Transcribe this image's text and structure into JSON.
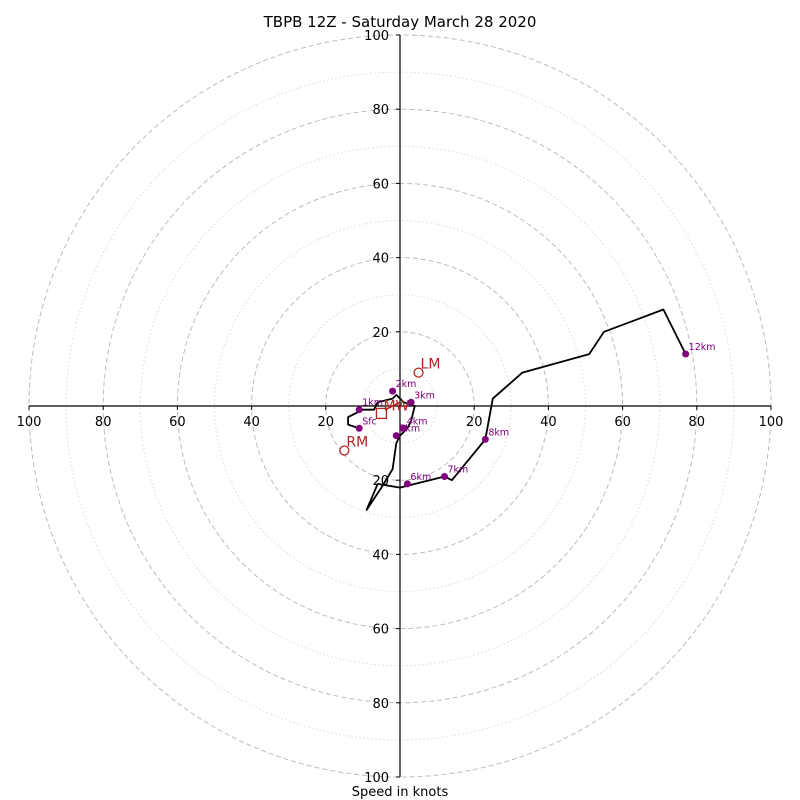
{
  "colors": {
    "hodograph": "#000000",
    "height_markers": "#800080",
    "storm_motion": "#b22222",
    "grid": "#bdbdbd"
  },
  "chart_data": {
    "type": "scatter",
    "title": "TBPB 12Z - Saturday March 28 2020",
    "xlabel": "Speed in knots",
    "rings": [
      20,
      40,
      60,
      80,
      100
    ],
    "minor_rings": [
      10,
      30,
      50,
      70,
      90
    ],
    "xlim": [
      -100,
      100
    ],
    "ylim": [
      -100,
      100
    ],
    "x_ticks": [
      -100,
      -80,
      -60,
      -40,
      -20,
      20,
      40,
      60,
      80,
      100
    ],
    "x_tick_labels": [
      "100",
      "80",
      "60",
      "40",
      "20",
      "20",
      "40",
      "60",
      "80",
      "100"
    ],
    "y_ticks": [
      100,
      80,
      60,
      40,
      20,
      -20,
      -40,
      -60,
      -80,
      -100
    ],
    "y_tick_labels": [
      "100",
      "80",
      "60",
      "40",
      "20",
      "20",
      "40",
      "60",
      "80",
      "100"
    ],
    "grid": true,
    "hodograph": {
      "u": [
        -11,
        -14,
        -14,
        -10,
        -7,
        -6,
        -2,
        -1,
        1,
        4,
        3,
        2,
        1,
        0,
        -1,
        -2,
        -5,
        -9,
        -6,
        0,
        12,
        14,
        23,
        25,
        33,
        51,
        55,
        71,
        77
      ],
      "v": [
        -6,
        -5,
        -3,
        -1,
        -1,
        1,
        2,
        3,
        1,
        0,
        -4,
        -6,
        -7,
        -8,
        -10,
        -17,
        -22,
        -28,
        -21,
        -22,
        -19,
        -20,
        -9,
        2,
        9,
        14,
        20,
        26,
        14
      ]
    },
    "height_markers": [
      {
        "label": "Sfc",
        "u": -11,
        "v": -6
      },
      {
        "label": "1km",
        "u": -11,
        "v": -1
      },
      {
        "label": "2km",
        "u": -2,
        "v": 4
      },
      {
        "label": "3km",
        "u": 3,
        "v": 1
      },
      {
        "label": "4km",
        "u": 1,
        "v": -6
      },
      {
        "label": "5km",
        "u": -1,
        "v": -8
      },
      {
        "label": "6km",
        "u": 2,
        "v": -21
      },
      {
        "label": "7km",
        "u": 12,
        "v": -19
      },
      {
        "label": "8km",
        "u": 23,
        "v": -9
      },
      {
        "label": "12km",
        "u": 77,
        "v": 14
      }
    ],
    "storm_motions": [
      {
        "label": "LM",
        "marker": "circle",
        "u": 5,
        "v": 9
      },
      {
        "label": "RM",
        "marker": "circle",
        "u": -15,
        "v": -12
      },
      {
        "label": "MW",
        "marker": "square",
        "u": -5,
        "v": -2
      }
    ],
    "shear_vector": {
      "u_from": -4,
      "v_from": -1,
      "u_to": 0,
      "v_to": 1
    }
  }
}
